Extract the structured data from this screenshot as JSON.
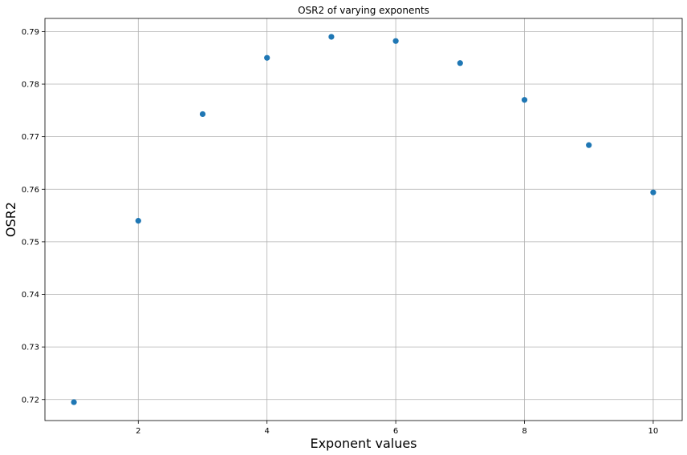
{
  "chart_data": {
    "type": "scatter",
    "title": "OSR2 of varying exponents",
    "xlabel": "Exponent values",
    "ylabel": "OSR2",
    "x": [
      1,
      2,
      3,
      4,
      5,
      6,
      7,
      8,
      9,
      10
    ],
    "y": [
      0.7195,
      0.754,
      0.7743,
      0.785,
      0.789,
      0.7882,
      0.784,
      0.777,
      0.7684,
      0.7594
    ],
    "xlim": [
      0.55,
      10.45
    ],
    "ylim": [
      0.716,
      0.7925
    ],
    "xticks": [
      2,
      4,
      6,
      8,
      10
    ],
    "xtick_labels": [
      "2",
      "4",
      "6",
      "8",
      "10"
    ],
    "yticks": [
      0.72,
      0.73,
      0.74,
      0.75,
      0.76,
      0.77,
      0.78,
      0.79
    ],
    "ytick_labels": [
      "0.72",
      "0.73",
      "0.74",
      "0.75",
      "0.76",
      "0.77",
      "0.78",
      "0.79"
    ],
    "grid": true,
    "marker_color": "#1f77b4"
  }
}
